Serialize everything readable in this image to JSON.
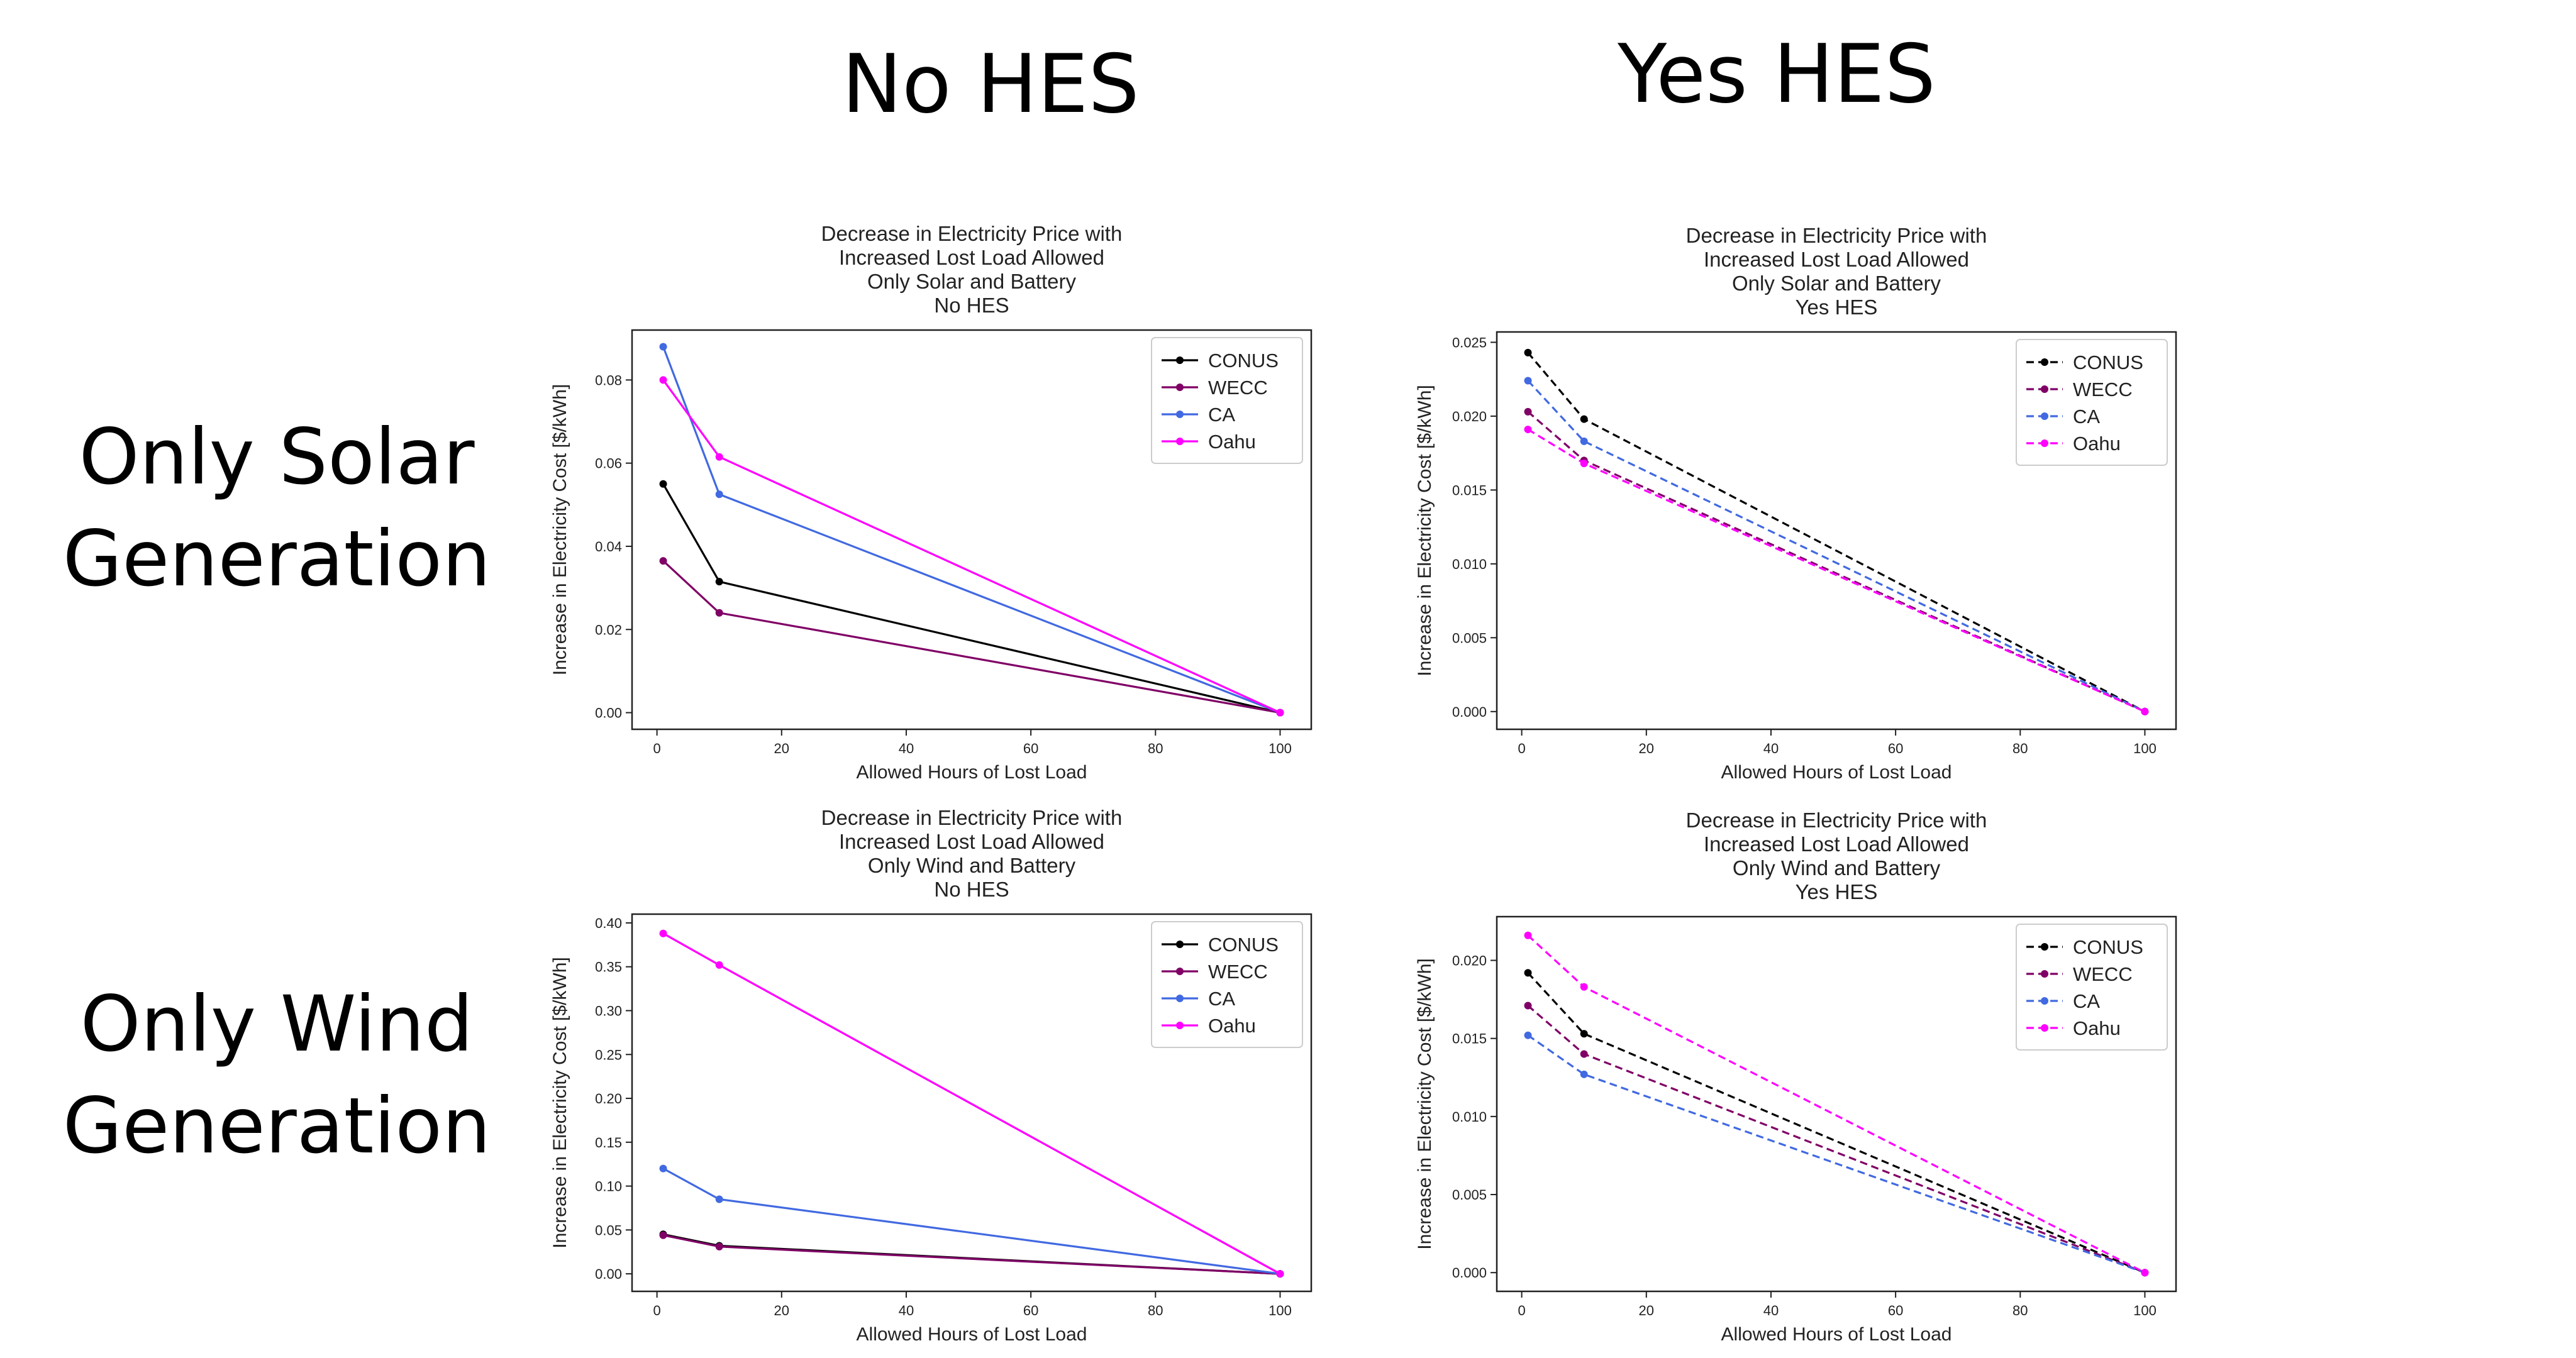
{
  "headers": {
    "columns": [
      "No HES",
      "Yes HES"
    ],
    "rows": [
      [
        "Only Solar",
        "Generation"
      ],
      [
        "Only Wind",
        "Generation"
      ]
    ]
  },
  "chart_data": [
    {
      "type": "line",
      "title": [
        "Decrease in Electricity Price with",
        "Increased Lost Load Allowed",
        "Only Solar and Battery",
        "No HES"
      ],
      "xlabel": "Allowed Hours of Lost Load",
      "ylabel": "Increase in Electricity Cost [$/kWh]",
      "xlim": [
        -4,
        105
      ],
      "ylim": [
        -0.004,
        0.092
      ],
      "xticks": [
        0,
        20,
        40,
        60,
        80,
        100
      ],
      "yticks": [
        0.0,
        0.02,
        0.04,
        0.06,
        0.08
      ],
      "ytick_labels": [
        "0.00",
        "0.02",
        "0.04",
        "0.06",
        "0.08"
      ],
      "line_style": "solid",
      "legend_position": "upper-right",
      "x": [
        1,
        10,
        100
      ],
      "series": [
        {
          "name": "CONUS",
          "color": "#000000",
          "values": [
            0.055,
            0.0315,
            0.0
          ]
        },
        {
          "name": "WECC",
          "color": "#800066",
          "values": [
            0.0365,
            0.024,
            0.0
          ]
        },
        {
          "name": "CA",
          "color": "#4169e1",
          "values": [
            0.088,
            0.0525,
            0.0
          ]
        },
        {
          "name": "Oahu",
          "color": "#ff00ff",
          "values": [
            0.08,
            0.0615,
            0.0
          ]
        }
      ]
    },
    {
      "type": "line",
      "title": [
        "Decrease in Electricity Price with",
        "Increased Lost Load Allowed",
        "Only Solar and Battery",
        "Yes HES"
      ],
      "xlabel": "Allowed Hours of Lost Load",
      "ylabel": "Increase in Electricity Cost [$/kWh]",
      "xlim": [
        -4,
        105
      ],
      "ylim": [
        -0.0012,
        0.0257
      ],
      "xticks": [
        0,
        20,
        40,
        60,
        80,
        100
      ],
      "yticks": [
        0.0,
        0.005,
        0.01,
        0.015,
        0.02,
        0.025
      ],
      "ytick_labels": [
        "0.000",
        "0.005",
        "0.010",
        "0.015",
        "0.020",
        "0.025"
      ],
      "line_style": "dashed",
      "legend_position": "upper-right",
      "x": [
        1,
        10,
        100
      ],
      "series": [
        {
          "name": "CONUS",
          "color": "#000000",
          "values": [
            0.0243,
            0.0198,
            0.0
          ]
        },
        {
          "name": "WECC",
          "color": "#800066",
          "values": [
            0.0203,
            0.017,
            0.0
          ]
        },
        {
          "name": "CA",
          "color": "#4169e1",
          "values": [
            0.0224,
            0.0183,
            0.0
          ]
        },
        {
          "name": "Oahu",
          "color": "#ff00ff",
          "values": [
            0.0191,
            0.0168,
            0.0
          ]
        }
      ]
    },
    {
      "type": "line",
      "title": [
        "Decrease in Electricity Price with",
        "Increased Lost Load Allowed",
        "Only Wind and Battery",
        "No HES"
      ],
      "xlabel": "Allowed Hours of Lost Load",
      "ylabel": "Increase in Electricity Cost [$/kWh]",
      "xlim": [
        -4,
        105
      ],
      "ylim": [
        -0.02,
        0.41
      ],
      "xticks": [
        0,
        20,
        40,
        60,
        80,
        100
      ],
      "yticks": [
        0.0,
        0.05,
        0.1,
        0.15,
        0.2,
        0.25,
        0.3,
        0.35,
        0.4
      ],
      "ytick_labels": [
        "0.00",
        "0.05",
        "0.10",
        "0.15",
        "0.20",
        "0.25",
        "0.30",
        "0.35",
        "0.40"
      ],
      "line_style": "solid",
      "legend_position": "upper-right",
      "x": [
        1,
        10,
        100
      ],
      "series": [
        {
          "name": "CONUS",
          "color": "#000000",
          "values": [
            0.045,
            0.032,
            0.0
          ]
        },
        {
          "name": "WECC",
          "color": "#800066",
          "values": [
            0.044,
            0.031,
            0.0
          ]
        },
        {
          "name": "CA",
          "color": "#4169e1",
          "values": [
            0.12,
            0.085,
            0.0
          ]
        },
        {
          "name": "Oahu",
          "color": "#ff00ff",
          "values": [
            0.388,
            0.352,
            0.0
          ]
        }
      ]
    },
    {
      "type": "line",
      "title": [
        "Decrease in Electricity Price with",
        "Increased Lost Load Allowed",
        "Only Wind and Battery",
        "Yes HES"
      ],
      "xlabel": "Allowed Hours of Lost Load",
      "ylabel": "Increase in Electricity Cost [$/kWh]",
      "xlim": [
        -4,
        105
      ],
      "ylim": [
        -0.0012,
        0.0228
      ],
      "xticks": [
        0,
        20,
        40,
        60,
        80,
        100
      ],
      "yticks": [
        0.0,
        0.005,
        0.01,
        0.015,
        0.02
      ],
      "ytick_labels": [
        "0.000",
        "0.005",
        "0.010",
        "0.015",
        "0.020"
      ],
      "line_style": "dashed",
      "legend_position": "upper-right",
      "x": [
        1,
        10,
        100
      ],
      "series": [
        {
          "name": "CONUS",
          "color": "#000000",
          "values": [
            0.0192,
            0.0153,
            0.0
          ]
        },
        {
          "name": "WECC",
          "color": "#800066",
          "values": [
            0.0171,
            0.014,
            0.0
          ]
        },
        {
          "name": "CA",
          "color": "#4169e1",
          "values": [
            0.0152,
            0.0127,
            0.0
          ]
        },
        {
          "name": "Oahu",
          "color": "#ff00ff",
          "values": [
            0.0216,
            0.0183,
            0.0
          ]
        }
      ]
    }
  ]
}
